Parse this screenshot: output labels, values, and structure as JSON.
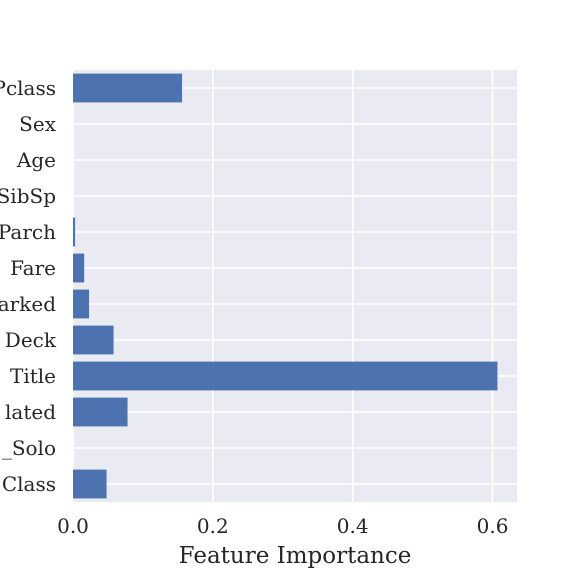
{
  "chart_data": {
    "type": "bar",
    "orientation": "horizontal",
    "title": "",
    "xlabel": "Feature Importance",
    "ylabel": "",
    "xlim": [
      0,
      0.635
    ],
    "xticks": [
      0.0,
      0.2,
      0.4,
      0.6
    ],
    "xtick_labels": [
      "0.0",
      "0.2",
      "0.4",
      "0.6"
    ],
    "grid": true,
    "style": "seaborn-darkgrid",
    "colors": {
      "bar": "#4c72b0",
      "plot_background": "#eaeaf2",
      "grid": "#ffffff"
    },
    "categories": [
      "Class",
      "_Solo",
      "lated",
      "Title",
      "Deck",
      "arked",
      "Fare",
      "Parch",
      "SibSp",
      "Age",
      "Sex",
      "Pclass"
    ],
    "values": [
      0.048,
      0.0,
      0.078,
      0.607,
      0.058,
      0.023,
      0.016,
      0.003,
      0.0,
      0.0,
      0.0,
      0.156
    ]
  }
}
